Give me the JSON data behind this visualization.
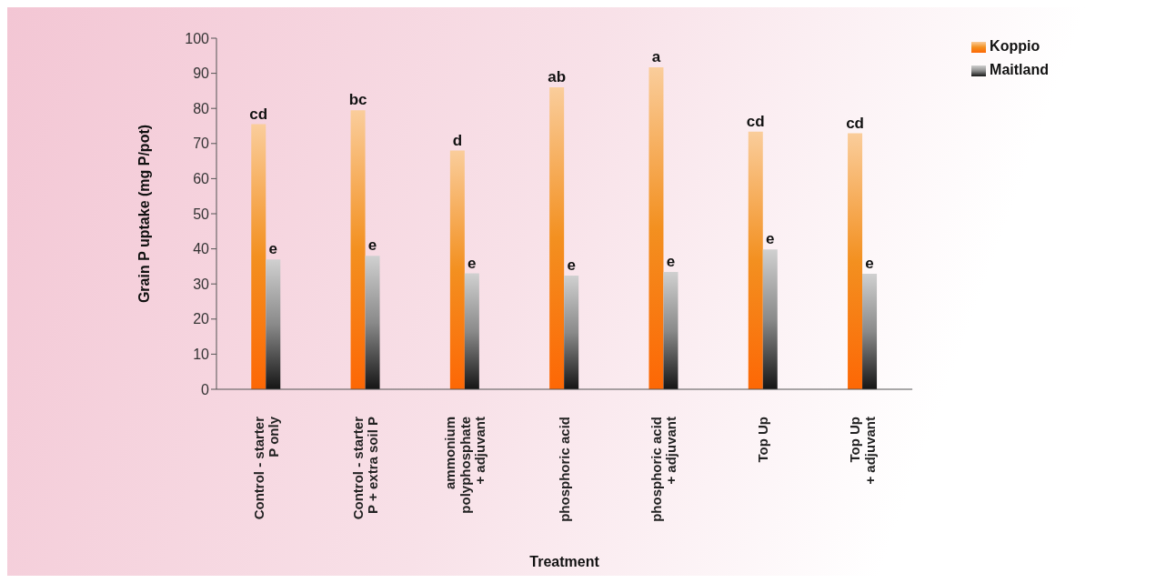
{
  "chart_data": {
    "type": "bar",
    "xlabel": "Treatment",
    "ylabel": "Grain P uptake (mg P/pot)",
    "categories": [
      "Control - starter\nP only",
      "Control - starter\nP + extra soil P",
      "ammonium\npolyphosphate\n+ adjuvant",
      "phosphoric acid",
      "phosphoric acid\n+ adjuvant",
      "Top Up",
      "Top Up\n+ adjuvant"
    ],
    "series": [
      {
        "name": "Koppio",
        "color": "#f39020",
        "values": [
          75.5,
          79.5,
          68,
          86,
          91.7,
          73.4,
          72.9
        ],
        "value_labels": [
          "cd",
          "bc",
          "d",
          "ab",
          "a",
          "cd",
          "cd"
        ]
      },
      {
        "name": "Maitland",
        "color": "#8a8a8a",
        "values": [
          37,
          38,
          33,
          32.4,
          33.4,
          39.8,
          32.9
        ],
        "value_labels": [
          "e",
          "e",
          "e",
          "e",
          "e",
          "e",
          "e"
        ]
      }
    ],
    "ylim": [
      0,
      100
    ],
    "yticks": [
      0,
      10,
      20,
      30,
      40,
      50,
      60,
      70,
      80,
      90,
      100
    ],
    "grid": false,
    "legend": "top right"
  }
}
